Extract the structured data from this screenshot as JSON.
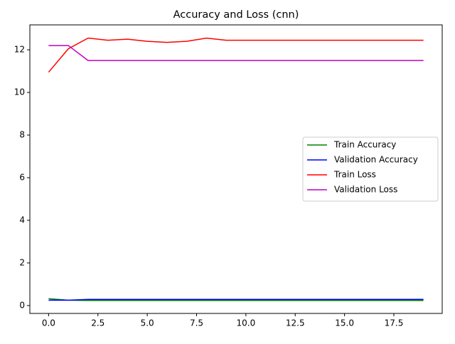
{
  "chart_data": {
    "type": "line",
    "title": "Accuracy and Loss (cnn)",
    "x": [
      0,
      1,
      2,
      3,
      4,
      5,
      6,
      7,
      8,
      9,
      10,
      11,
      12,
      13,
      14,
      15,
      16,
      17,
      18,
      19
    ],
    "series": [
      {
        "name": "Train Accuracy",
        "color": "#008000",
        "values": [
          0.32,
          0.25,
          0.24,
          0.24,
          0.24,
          0.24,
          0.24,
          0.24,
          0.24,
          0.24,
          0.24,
          0.24,
          0.24,
          0.24,
          0.24,
          0.24,
          0.24,
          0.24,
          0.24,
          0.24
        ]
      },
      {
        "name": "Validation Accuracy",
        "color": "#0000ff",
        "values": [
          0.25,
          0.25,
          0.29,
          0.29,
          0.29,
          0.29,
          0.29,
          0.29,
          0.29,
          0.29,
          0.29,
          0.29,
          0.29,
          0.29,
          0.29,
          0.29,
          0.29,
          0.29,
          0.29,
          0.29
        ]
      },
      {
        "name": "Train Loss",
        "color": "#ff0000",
        "values": [
          10.95,
          12.05,
          12.55,
          12.45,
          12.5,
          12.4,
          12.35,
          12.4,
          12.55,
          12.45,
          12.45,
          12.45,
          12.45,
          12.45,
          12.45,
          12.45,
          12.45,
          12.45,
          12.45,
          12.45
        ]
      },
      {
        "name": "Validation Loss",
        "color": "#bf00bf",
        "values": [
          12.2,
          12.2,
          11.5,
          11.5,
          11.5,
          11.5,
          11.5,
          11.5,
          11.5,
          11.5,
          11.5,
          11.5,
          11.5,
          11.5,
          11.5,
          11.5,
          11.5,
          11.5,
          11.5,
          11.5
        ]
      }
    ],
    "xlim": [
      -0.95,
      19.95
    ],
    "xticks": [
      {
        "value": 0,
        "label": "0.0"
      },
      2.5,
      {
        "value": 5,
        "label": "5.0"
      },
      7.5,
      {
        "value": 10,
        "label": "10.0"
      },
      12.5,
      {
        "value": 15,
        "label": "15.0"
      },
      17.5
    ],
    "ylim": [
      -0.37,
      13.17
    ],
    "yticks": [
      0,
      2,
      4,
      6,
      8,
      10,
      12
    ],
    "legend": "center right"
  }
}
